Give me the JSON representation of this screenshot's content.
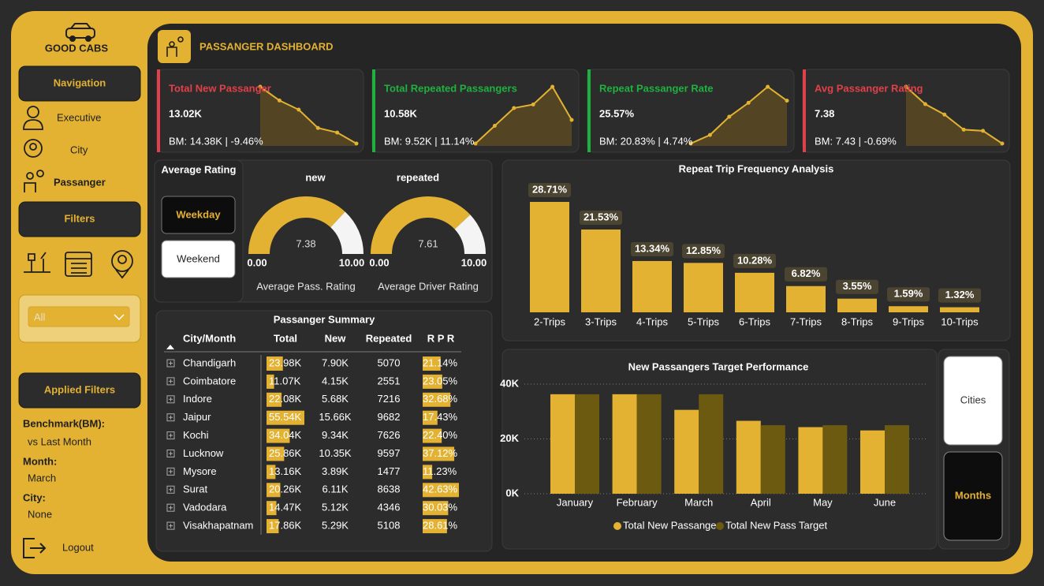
{
  "sidebar": {
    "brand": "GOOD CABS",
    "navigation": "Navigation",
    "nav_items": [
      "Executive",
      "City",
      "Passanger"
    ],
    "filters": "Filters",
    "dropdown": "All",
    "applied_filters": "Applied Filters",
    "filters_applied": [
      {
        "label": "Benchmark(BM):",
        "value": "vs Last Month"
      },
      {
        "label": "Month:",
        "value": "March"
      },
      {
        "label": "City:",
        "value": "None"
      }
    ],
    "logout": "Logout"
  },
  "header": {
    "title": "PASSANGER DASHBOARD"
  },
  "kpis": [
    {
      "title": "Total New Passanger",
      "value": "13.02K",
      "benchmark": "BM: 14.38K | -9.46%",
      "color": "#e0404a",
      "trend": [
        80,
        65,
        55,
        35,
        30,
        18
      ]
    },
    {
      "title": "Total Repeated Passangers",
      "value": "10.58K",
      "benchmark": "BM: 9.52K | 11.14%",
      "color": "#20b040",
      "trend": [
        10,
        25,
        40,
        43,
        58,
        30
      ]
    },
    {
      "title": "Repeat Passanger Rate",
      "value": "25.57%",
      "benchmark": "BM: 20.83% | 4.74%",
      "color": "#20b040",
      "trend": [
        22,
        30,
        47,
        60,
        75,
        62
      ]
    },
    {
      "title": "Avg Passanger Rating",
      "value": "7.38",
      "benchmark": "BM: 7.43 | -0.69%",
      "color": "#e0404a",
      "trend": [
        67,
        52,
        43,
        30,
        29,
        18
      ]
    }
  ],
  "rating_panel": {
    "title": "Average Rating",
    "options": [
      "Weekday",
      "Weekend"
    ],
    "selected_index": 0
  },
  "gauges": [
    {
      "label": "new",
      "value": 7.38,
      "min": {
        "value": 0,
        "label": "0.00"
      },
      "max": {
        "value": 10,
        "label": "10.00"
      },
      "caption": "Average Pass. Rating"
    },
    {
      "label": "repeated",
      "value": 7.61,
      "min": {
        "value": 0,
        "label": "0.00"
      },
      "max": {
        "value": 10,
        "label": "10.00"
      },
      "caption": "Average Driver Rating"
    }
  ],
  "table": {
    "title": "Passanger Summary",
    "columns": [
      "City/Month",
      "Total",
      "New",
      "Repeated",
      "R P R"
    ],
    "rows": [
      {
        "city": "Chandigarh",
        "total": {
          "value": 23980,
          "label": "23.98K"
        },
        "new": "7.90K",
        "repeated": 5070,
        "rpr": {
          "value": 21.14,
          "label": "21.14%"
        }
      },
      {
        "city": "Coimbatore",
        "total": {
          "value": 11070,
          "label": "11.07K"
        },
        "new": "4.15K",
        "repeated": 2551,
        "rpr": {
          "value": 23.05,
          "label": "23.05%"
        }
      },
      {
        "city": "Indore",
        "total": {
          "value": 22080,
          "label": "22.08K"
        },
        "new": "5.68K",
        "repeated": 7216,
        "rpr": {
          "value": 32.68,
          "label": "32.68%"
        }
      },
      {
        "city": "Jaipur",
        "total": {
          "value": 55540,
          "label": "55.54K"
        },
        "new": "15.66K",
        "repeated": 9682,
        "rpr": {
          "value": 17.43,
          "label": "17.43%"
        }
      },
      {
        "city": "Kochi",
        "total": {
          "value": 34040,
          "label": "34.04K"
        },
        "new": "9.34K",
        "repeated": 7626,
        "rpr": {
          "value": 22.4,
          "label": "22.40%"
        }
      },
      {
        "city": "Lucknow",
        "total": {
          "value": 25860,
          "label": "25.86K"
        },
        "new": "10.35K",
        "repeated": 9597,
        "rpr": {
          "value": 37.12,
          "label": "37.12%"
        }
      },
      {
        "city": "Mysore",
        "total": {
          "value": 13160,
          "label": "13.16K"
        },
        "new": "3.89K",
        "repeated": 1477,
        "rpr": {
          "value": 11.23,
          "label": "11.23%"
        }
      },
      {
        "city": "Surat",
        "total": {
          "value": 20260,
          "label": "20.26K"
        },
        "new": "6.11K",
        "repeated": 8638,
        "rpr": {
          "value": 42.63,
          "label": "42.63%"
        }
      },
      {
        "city": "Vadodara",
        "total": {
          "value": 14470,
          "label": "14.47K"
        },
        "new": "5.12K",
        "repeated": 4346,
        "rpr": {
          "value": 30.03,
          "label": "30.03%"
        }
      },
      {
        "city": "Visakhapatnam",
        "total": {
          "value": 17860,
          "label": "17.86K"
        },
        "new": "5.29K",
        "repeated": 5108,
        "rpr": {
          "value": 28.61,
          "label": "28.61%"
        }
      }
    ]
  },
  "chart_data": [
    {
      "type": "bar",
      "title": "Repeat Trip Frequency Analysis",
      "categories": [
        "2-Trips",
        "3-Trips",
        "4-Trips",
        "5-Trips",
        "6-Trips",
        "7-Trips",
        "8-Trips",
        "9-Trips",
        "10-Trips"
      ],
      "values": [
        28.71,
        21.53,
        13.34,
        12.85,
        10.28,
        6.82,
        3.55,
        1.59,
        1.32
      ],
      "value_labels": [
        "28.71%",
        "21.53%",
        "13.34%",
        "12.85%",
        "10.28%",
        "6.82%",
        "3.55%",
        "1.59%",
        "1.32%"
      ],
      "color": "#e3b232"
    },
    {
      "type": "grouped-bar",
      "title": "New Passangers Target Performance",
      "categories": [
        "January",
        "February",
        "March",
        "April",
        "May",
        "June"
      ],
      "series": [
        {
          "name": "Total New Passanger",
          "color": "#e3b232",
          "values": [
            36300,
            36300,
            30600,
            26600,
            24300,
            23100
          ]
        },
        {
          "name": "Total New Pass Target",
          "color": "#6b5a10",
          "values": [
            36300,
            36300,
            36300,
            25000,
            25000,
            25000
          ]
        }
      ],
      "ylim": [
        0,
        40000
      ],
      "yticks": [
        {
          "value": 0,
          "label": "0K"
        },
        {
          "value": 20000,
          "label": "20K"
        },
        {
          "value": 40000,
          "label": "40K"
        }
      ],
      "grid": true
    }
  ],
  "view_toggle": {
    "options": [
      "Cities",
      "Months"
    ],
    "selected_index": 1
  }
}
